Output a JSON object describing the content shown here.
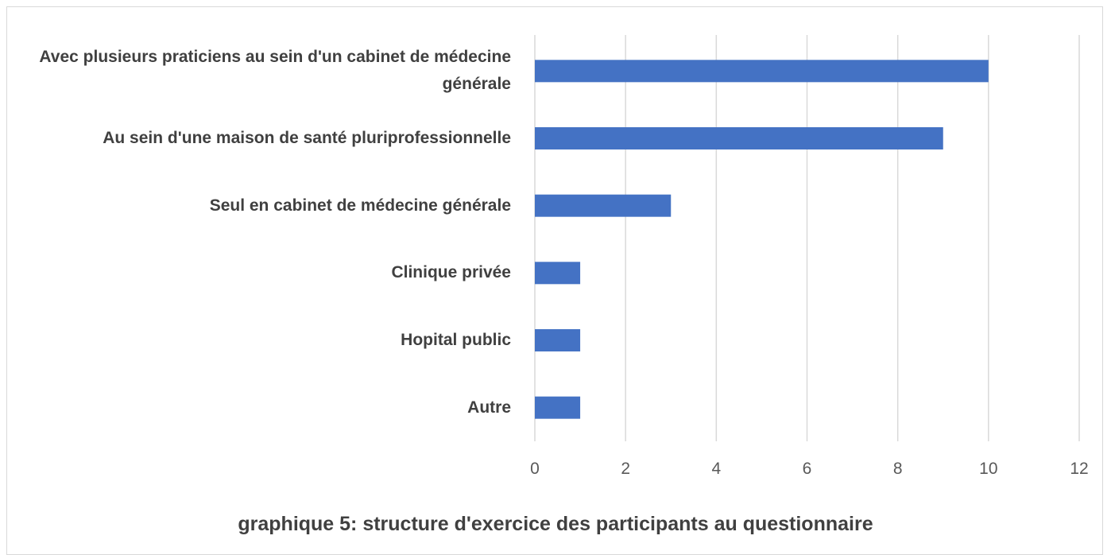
{
  "chart_data": {
    "type": "bar",
    "orientation": "horizontal",
    "title": "graphique 5: structure d'exercice des participants au questionnaire",
    "categories": [
      "Avec plusieurs praticiens au sein d'un cabinet de médecine générale",
      "Au sein d'une maison de santé pluriprofessionnelle",
      "Seul en cabinet de médecine générale",
      "Clinique privée",
      "Hopital public",
      "Autre"
    ],
    "values": [
      10,
      9,
      3,
      1,
      1,
      1
    ],
    "color": "#4472c4",
    "xlim": [
      0,
      12
    ],
    "xticks": [
      0,
      2,
      4,
      6,
      8,
      10,
      12
    ],
    "grid": true
  }
}
